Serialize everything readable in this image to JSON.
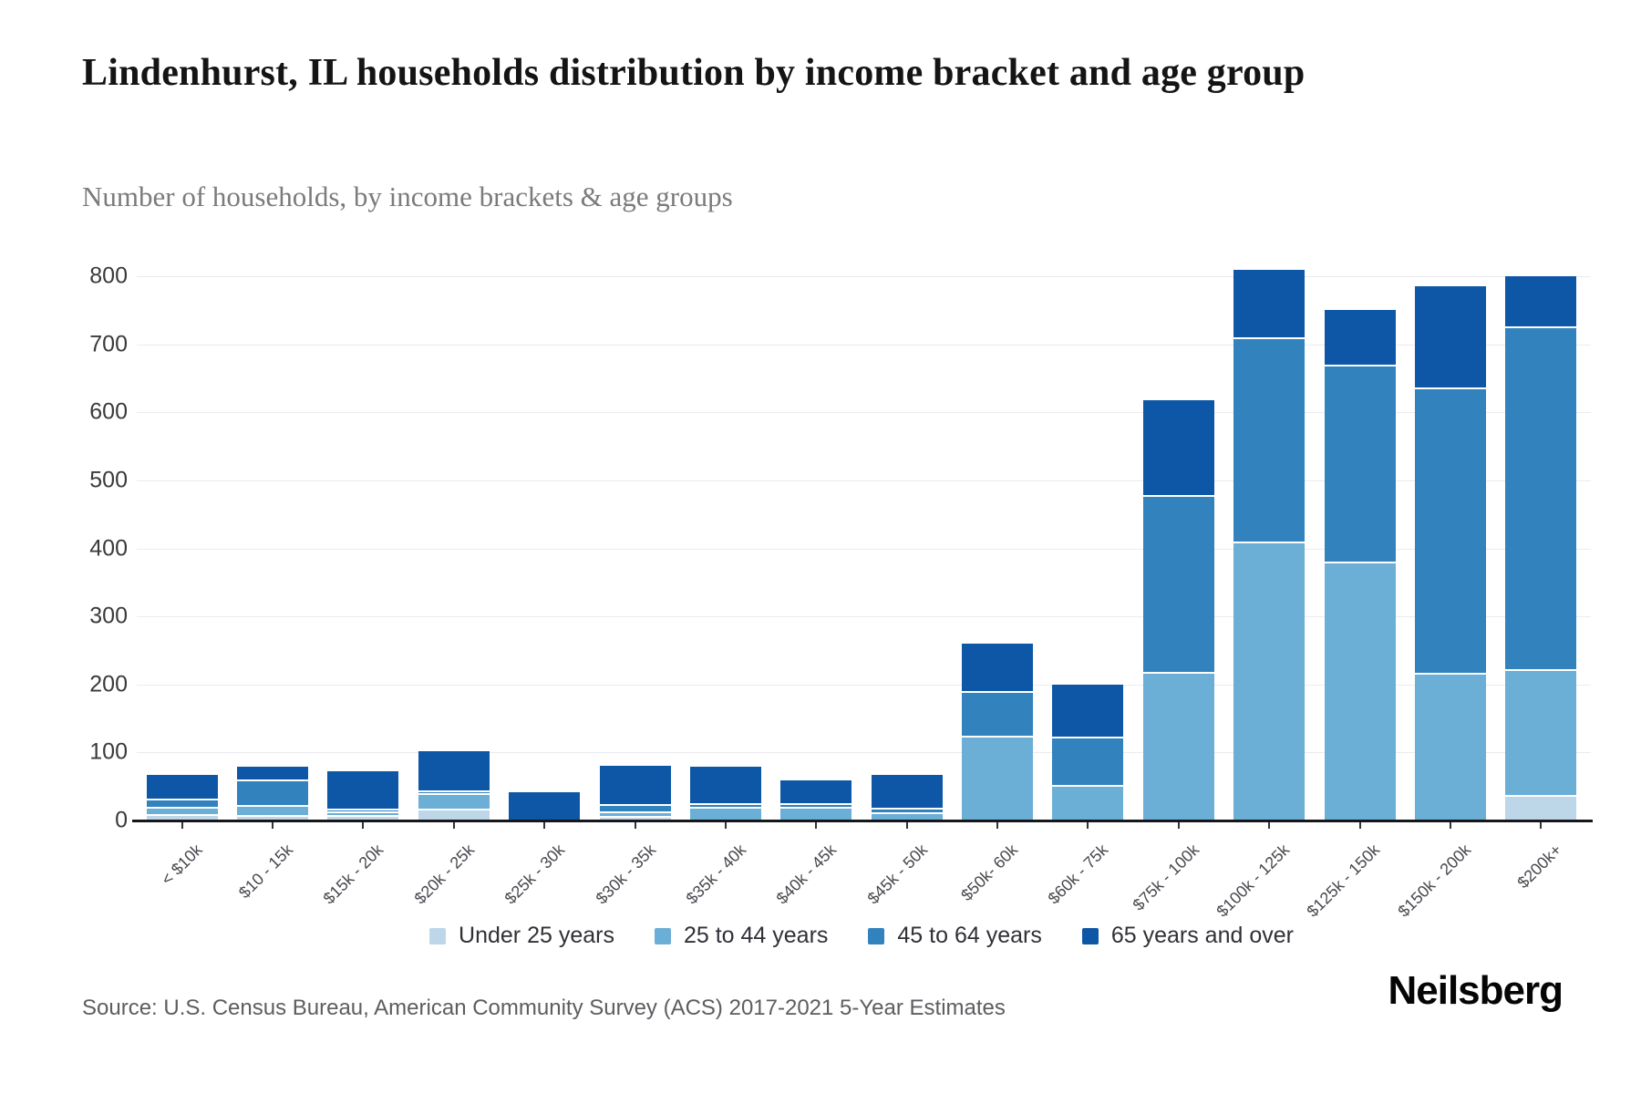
{
  "title": "Lindenhurst, IL households distribution by income bracket and age group",
  "subtitle": "Number of households, by income brackets & age groups",
  "source": "Source: U.S. Census Bureau, American Community Survey (ACS) 2017-2021 5-Year Estimates",
  "brand": "Neilsberg",
  "colors": {
    "axis": "#16161d",
    "grid": "#ebebf0",
    "title_text": "#141414",
    "subtitle_text": "#7b7b7b",
    "source_text": "#5d5d62"
  },
  "chart_data": {
    "type": "bar",
    "stacked": true,
    "title": "Lindenhurst, IL households distribution by income bracket and age group",
    "xlabel": "",
    "ylabel": "Number of households",
    "ylim": [
      0,
      800
    ],
    "yticks": [
      0,
      100,
      200,
      300,
      400,
      500,
      600,
      700,
      800
    ],
    "grid": "horizontal",
    "legend_position": "bottom",
    "categories": [
      "< $10k",
      "$10 - 15k",
      "$15k - 20k",
      "$20k - 25k",
      "$25k - 30k",
      "$30k - 35k",
      "$35k - 40k",
      "$40k - 45k",
      "$45k - 50k",
      "$50k- 60k",
      "$60k - 75k",
      "$75k - 100k",
      "$100k - 125k",
      "$125k - 150k",
      "$150k - 200k",
      "$200k+"
    ],
    "series": [
      {
        "name": "Under 25 years",
        "color": "#bdd7e8",
        "values": [
          10,
          8,
          8,
          17,
          0,
          7,
          0,
          0,
          0,
          0,
          0,
          0,
          0,
          0,
          0,
          38
        ]
      },
      {
        "name": "25 to 44 years",
        "color": "#6baed6",
        "values": [
          10,
          15,
          5,
          23,
          0,
          7,
          20,
          20,
          12,
          125,
          52,
          218,
          410,
          380,
          217,
          184
        ]
      },
      {
        "name": "45 to 64 years",
        "color": "#3182bd",
        "values": [
          12,
          37,
          5,
          4,
          0,
          10,
          6,
          6,
          7,
          65,
          71,
          260,
          300,
          290,
          420,
          505
        ]
      },
      {
        "name": "65 years and over",
        "color": "#0d57a6",
        "values": [
          35,
          19,
          55,
          58,
          42,
          56,
          53,
          33,
          48,
          70,
          77,
          140,
          100,
          80,
          148,
          73
        ]
      }
    ]
  }
}
